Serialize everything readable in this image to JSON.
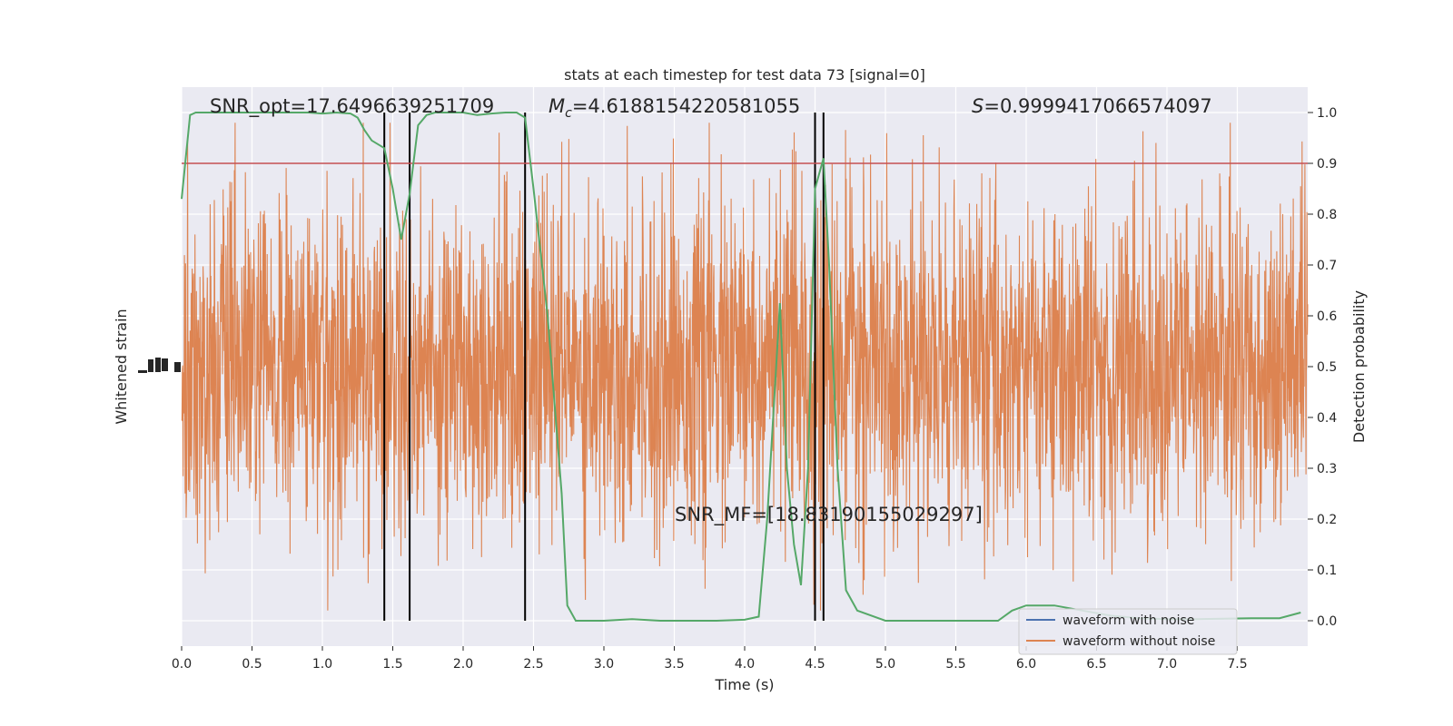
{
  "chart_data": {
    "type": "line",
    "title": "stats at each timestep for test data 73 [signal=0]",
    "xlabel": "Time (s)",
    "ylabel_left": "Whitened strain",
    "ylabel_right": "Detection probability",
    "xlim": [
      0,
      8
    ],
    "ylim_right": [
      -0.05,
      1.05
    ],
    "x_ticks": [
      "0.0",
      "0.5",
      "1.0",
      "1.5",
      "2.0",
      "2.5",
      "3.0",
      "3.5",
      "4.0",
      "4.5",
      "5.0",
      "5.5",
      "6.0",
      "6.5",
      "7.0",
      "7.5"
    ],
    "x_tick_values": [
      0,
      0.5,
      1,
      1.5,
      2,
      2.5,
      3,
      3.5,
      4,
      4.5,
      5,
      5.5,
      6,
      6.5,
      7,
      7.5
    ],
    "y_right_ticks": [
      "0.0",
      "0.1",
      "0.2",
      "0.3",
      "0.4",
      "0.5",
      "0.6",
      "0.7",
      "0.8",
      "0.9",
      "1.0"
    ],
    "y_right_tick_values": [
      0,
      0.1,
      0.2,
      0.3,
      0.4,
      0.5,
      0.6,
      0.7,
      0.8,
      0.9,
      1.0
    ],
    "grid": true,
    "legend": {
      "placement": "lower-right",
      "entries": [
        {
          "label": "waveform with noise",
          "color": "#4c72b0"
        },
        {
          "label": "waveform without noise",
          "color": "#dd8452"
        }
      ]
    },
    "annotations": {
      "snr_opt": "SNR_opt=17.6496639251709",
      "mc_symbol": "M",
      "mc_sub": "c",
      "mc_value": "=4.6188154220581055",
      "s_symbol": "S",
      "s_value": "=0.9999417066574097",
      "snr_mf": "SNR_MF=[18.83190155029297]"
    },
    "threshold": {
      "value": 0.9,
      "color": "#c44e52"
    },
    "vertical_lines": [
      1.44,
      1.62,
      2.44,
      4.5,
      4.56
    ],
    "noise_series": {
      "name": "waveform without noise",
      "color": "#dd8452",
      "envelope": [
        0.0,
        1.0
      ]
    },
    "probability_series": {
      "color": "#55a868",
      "x": [
        0.0,
        0.06,
        0.1,
        0.2,
        0.3,
        0.4,
        0.5,
        0.6,
        0.7,
        0.8,
        0.9,
        1.0,
        1.1,
        1.2,
        1.25,
        1.3,
        1.35,
        1.44,
        1.5,
        1.56,
        1.62,
        1.68,
        1.74,
        1.8,
        1.9,
        2.0,
        2.1,
        2.2,
        2.3,
        2.38,
        2.44,
        2.5,
        2.6,
        2.7,
        2.74,
        2.8,
        3.0,
        3.2,
        3.4,
        3.6,
        3.8,
        4.0,
        4.1,
        4.16,
        4.25,
        4.3,
        4.35,
        4.4,
        4.45,
        4.5,
        4.56,
        4.6,
        4.66,
        4.72,
        4.8,
        5.0,
        5.2,
        5.4,
        5.6,
        5.8,
        5.9,
        6.0,
        6.2,
        6.4,
        6.6,
        6.8,
        7.0,
        7.2,
        7.4,
        7.6,
        7.8,
        7.95
      ],
      "y": [
        0.83,
        0.995,
        1.0,
        1.0,
        1.0,
        1.0,
        1.0,
        1.0,
        1.0,
        1.0,
        1.0,
        0.998,
        1.0,
        0.998,
        0.99,
        0.965,
        0.945,
        0.93,
        0.85,
        0.75,
        0.84,
        0.975,
        0.995,
        1.0,
        1.0,
        1.0,
        0.995,
        0.998,
        1.0,
        1.0,
        0.99,
        0.85,
        0.6,
        0.25,
        0.03,
        0.0,
        0.0,
        0.003,
        0.0,
        0.0,
        0.0,
        0.002,
        0.008,
        0.2,
        0.625,
        0.3,
        0.15,
        0.07,
        0.3,
        0.85,
        0.91,
        0.7,
        0.3,
        0.06,
        0.02,
        0.0,
        0.0,
        0.0,
        0.0,
        0.0,
        0.02,
        0.03,
        0.03,
        0.02,
        0.01,
        0.005,
        0.003,
        0.003,
        0.004,
        0.005,
        0.005,
        0.016
      ]
    }
  }
}
